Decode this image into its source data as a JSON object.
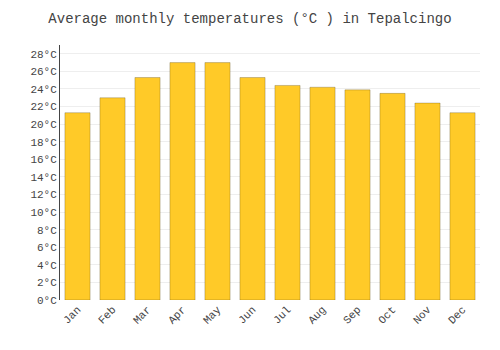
{
  "chart_data": {
    "type": "bar",
    "title": "Average monthly temperatures (°C ) in Tepalcingo",
    "categories": [
      "Jan",
      "Feb",
      "Mar",
      "Apr",
      "May",
      "Jun",
      "Jul",
      "Aug",
      "Sep",
      "Oct",
      "Nov",
      "Dec"
    ],
    "values": [
      21.3,
      23.0,
      25.3,
      27.0,
      27.0,
      25.3,
      24.4,
      24.2,
      23.9,
      23.5,
      22.4,
      21.3
    ],
    "color": "#FFCA28",
    "ylim": [
      0,
      29
    ],
    "yticks": [
      {
        "value": 0,
        "label": "0°C"
      },
      {
        "value": 2,
        "label": "2°C"
      },
      {
        "value": 4,
        "label": "4°C"
      },
      {
        "value": 6,
        "label": "6°C"
      },
      {
        "value": 8,
        "label": "8°C"
      },
      {
        "value": 10,
        "label": "10°C"
      },
      {
        "value": 12,
        "label": "12°C"
      },
      {
        "value": 14,
        "label": "14°C"
      },
      {
        "value": 16,
        "label": "16°C"
      },
      {
        "value": 18,
        "label": "18°C"
      },
      {
        "value": 20,
        "label": "20°C"
      },
      {
        "value": 22,
        "label": "22°C"
      },
      {
        "value": 24,
        "label": "24°C"
      },
      {
        "value": 26,
        "label": "26°C"
      },
      {
        "value": 28,
        "label": "28°C"
      }
    ],
    "grid": true
  }
}
